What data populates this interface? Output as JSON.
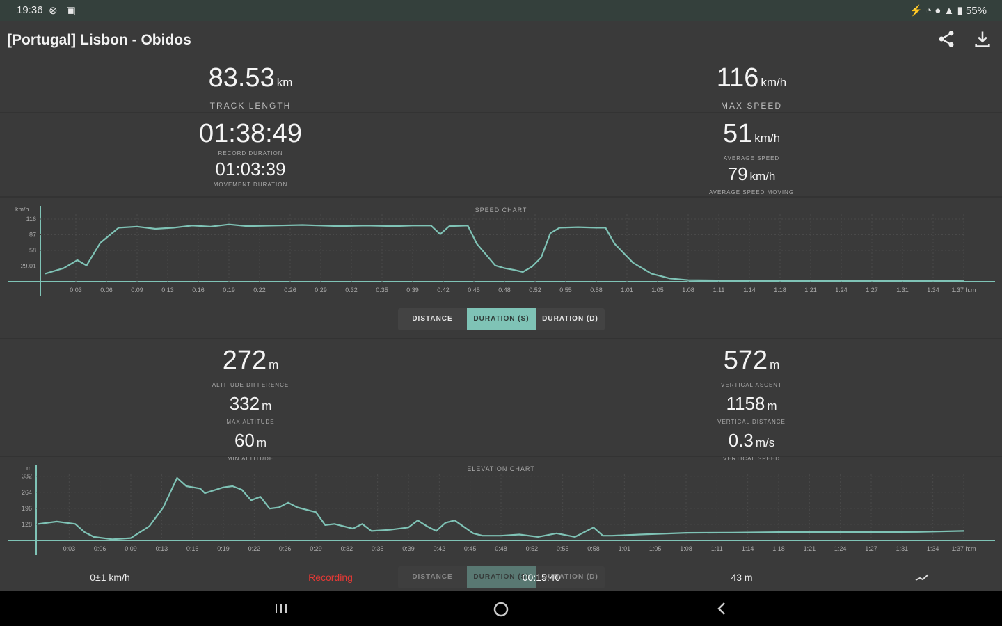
{
  "status": {
    "time": "19:36",
    "battery": "55%"
  },
  "title": "[Portugal] Lisbon - Obidos",
  "stats": {
    "track_length": {
      "value": "83.53",
      "unit": "km",
      "label": "TRACK LENGTH"
    },
    "max_speed": {
      "value": "116",
      "unit": "km/h",
      "label": "MAX SPEED"
    },
    "record_duration": {
      "value": "01:38:49",
      "label": "RECORD DURATION"
    },
    "movement_duration": {
      "value": "01:03:39",
      "label": "MOVEMENT DURATION"
    },
    "average_speed": {
      "value": "51",
      "unit": "km/h",
      "label": "AVERAGE SPEED"
    },
    "average_speed_moving": {
      "value": "79",
      "unit": "km/h",
      "label": "AVERAGE SPEED MOVING"
    },
    "altitude_difference": {
      "value": "272",
      "unit": "m",
      "label": "ALTITUDE DIFFERENCE"
    },
    "max_altitude": {
      "value": "332",
      "unit": "m",
      "label": "MAX ALTITUDE"
    },
    "min_altitude": {
      "value": "60",
      "unit": "m",
      "label": "MIN ALTITUDE"
    },
    "vertical_ascent": {
      "value": "572",
      "unit": "m",
      "label": "VERTICAL ASCENT"
    },
    "vertical_distance": {
      "value": "1158",
      "unit": "m",
      "label": "VERTICAL DISTANCE"
    },
    "vertical_speed": {
      "value": "0.3",
      "unit": "m/s",
      "label": "VERTICAL SPEED"
    }
  },
  "tabs": [
    "DISTANCE",
    "DURATION (S)",
    "DURATION (D)"
  ],
  "selected_tab": "DURATION (S)",
  "bottom": {
    "speed": "0±1 km/h",
    "recording": "Recording",
    "time": "00:15:40",
    "altitude": "43 m"
  },
  "colors": {
    "line": "#7fc3b6",
    "recording": "#e53935",
    "background": "#3a3a3a"
  },
  "x_ticks": [
    "0:03",
    "0:06",
    "0:09",
    "0:13",
    "0:16",
    "0:19",
    "0:22",
    "0:26",
    "0:29",
    "0:32",
    "0:35",
    "0:39",
    "0:42",
    "0:45",
    "0:48",
    "0:52",
    "0:55",
    "0:58",
    "1:01",
    "1:05",
    "1:08",
    "1:11",
    "1:14",
    "1:18",
    "1:21",
    "1:24",
    "1:27",
    "1:31",
    "1:34",
    "1:37 h:m"
  ],
  "chart_data": [
    {
      "type": "line",
      "title": "SPEED CHART",
      "ylabel": "km/h",
      "y_ticks": [
        "116",
        "87",
        "58",
        "29.01"
      ],
      "ylim": [
        0,
        125
      ],
      "series": [
        {
          "values": [
            [
              0,
              15
            ],
            [
              0.02,
              25
            ],
            [
              0.035,
              40
            ],
            [
              0.045,
              30
            ],
            [
              0.06,
              72
            ],
            [
              0.08,
              100
            ],
            [
              0.1,
              102
            ],
            [
              0.12,
              98
            ],
            [
              0.14,
              100
            ],
            [
              0.16,
              104
            ],
            [
              0.18,
              102
            ],
            [
              0.2,
              106
            ],
            [
              0.22,
              103
            ],
            [
              0.25,
              104
            ],
            [
              0.28,
              105
            ],
            [
              0.3,
              104
            ],
            [
              0.32,
              103
            ],
            [
              0.35,
              104
            ],
            [
              0.38,
              103
            ],
            [
              0.4,
              104
            ],
            [
              0.42,
              104
            ],
            [
              0.43,
              88
            ],
            [
              0.44,
              103
            ],
            [
              0.46,
              104
            ],
            [
              0.47,
              70
            ],
            [
              0.49,
              30
            ],
            [
              0.5,
              25
            ],
            [
              0.51,
              22
            ],
            [
              0.52,
              18
            ],
            [
              0.53,
              28
            ],
            [
              0.54,
              45
            ],
            [
              0.55,
              90
            ],
            [
              0.56,
              100
            ],
            [
              0.58,
              101
            ],
            [
              0.6,
              100
            ],
            [
              0.61,
              100
            ],
            [
              0.62,
              70
            ],
            [
              0.64,
              35
            ],
            [
              0.66,
              15
            ],
            [
              0.68,
              6
            ],
            [
              0.7,
              3
            ],
            [
              0.75,
              2
            ],
            [
              0.8,
              2
            ],
            [
              0.85,
              2
            ],
            [
              0.9,
              2
            ],
            [
              0.95,
              2
            ],
            [
              1,
              1
            ]
          ]
        }
      ]
    },
    {
      "type": "line",
      "title": "ELEVATION CHART",
      "ylabel": "m",
      "y_ticks": [
        "332",
        "264",
        "196",
        "128"
      ],
      "ylim": [
        60,
        340
      ],
      "series": [
        {
          "values": [
            [
              0,
              130
            ],
            [
              0.02,
              140
            ],
            [
              0.04,
              130
            ],
            [
              0.05,
              95
            ],
            [
              0.06,
              75
            ],
            [
              0.08,
              65
            ],
            [
              0.1,
              70
            ],
            [
              0.12,
              120
            ],
            [
              0.135,
              200
            ],
            [
              0.15,
              325
            ],
            [
              0.16,
              290
            ],
            [
              0.175,
              280
            ],
            [
              0.18,
              260
            ],
            [
              0.2,
              285
            ],
            [
              0.21,
              290
            ],
            [
              0.22,
              275
            ],
            [
              0.23,
              230
            ],
            [
              0.24,
              245
            ],
            [
              0.25,
              195
            ],
            [
              0.26,
              200
            ],
            [
              0.27,
              220
            ],
            [
              0.28,
              200
            ],
            [
              0.3,
              180
            ],
            [
              0.31,
              125
            ],
            [
              0.32,
              130
            ],
            [
              0.34,
              110
            ],
            [
              0.35,
              130
            ],
            [
              0.36,
              100
            ],
            [
              0.38,
              105
            ],
            [
              0.4,
              115
            ],
            [
              0.41,
              145
            ],
            [
              0.42,
              120
            ],
            [
              0.43,
              100
            ],
            [
              0.44,
              135
            ],
            [
              0.45,
              145
            ],
            [
              0.47,
              90
            ],
            [
              0.48,
              80
            ],
            [
              0.5,
              80
            ],
            [
              0.52,
              85
            ],
            [
              0.54,
              75
            ],
            [
              0.56,
              90
            ],
            [
              0.58,
              75
            ],
            [
              0.6,
              115
            ],
            [
              0.61,
              80
            ],
            [
              0.62,
              80
            ],
            [
              0.65,
              85
            ],
            [
              0.7,
              92
            ],
            [
              0.75,
              93
            ],
            [
              0.8,
              95
            ],
            [
              0.85,
              95
            ],
            [
              0.9,
              95
            ],
            [
              0.95,
              96
            ],
            [
              1,
              100
            ]
          ]
        }
      ]
    }
  ]
}
